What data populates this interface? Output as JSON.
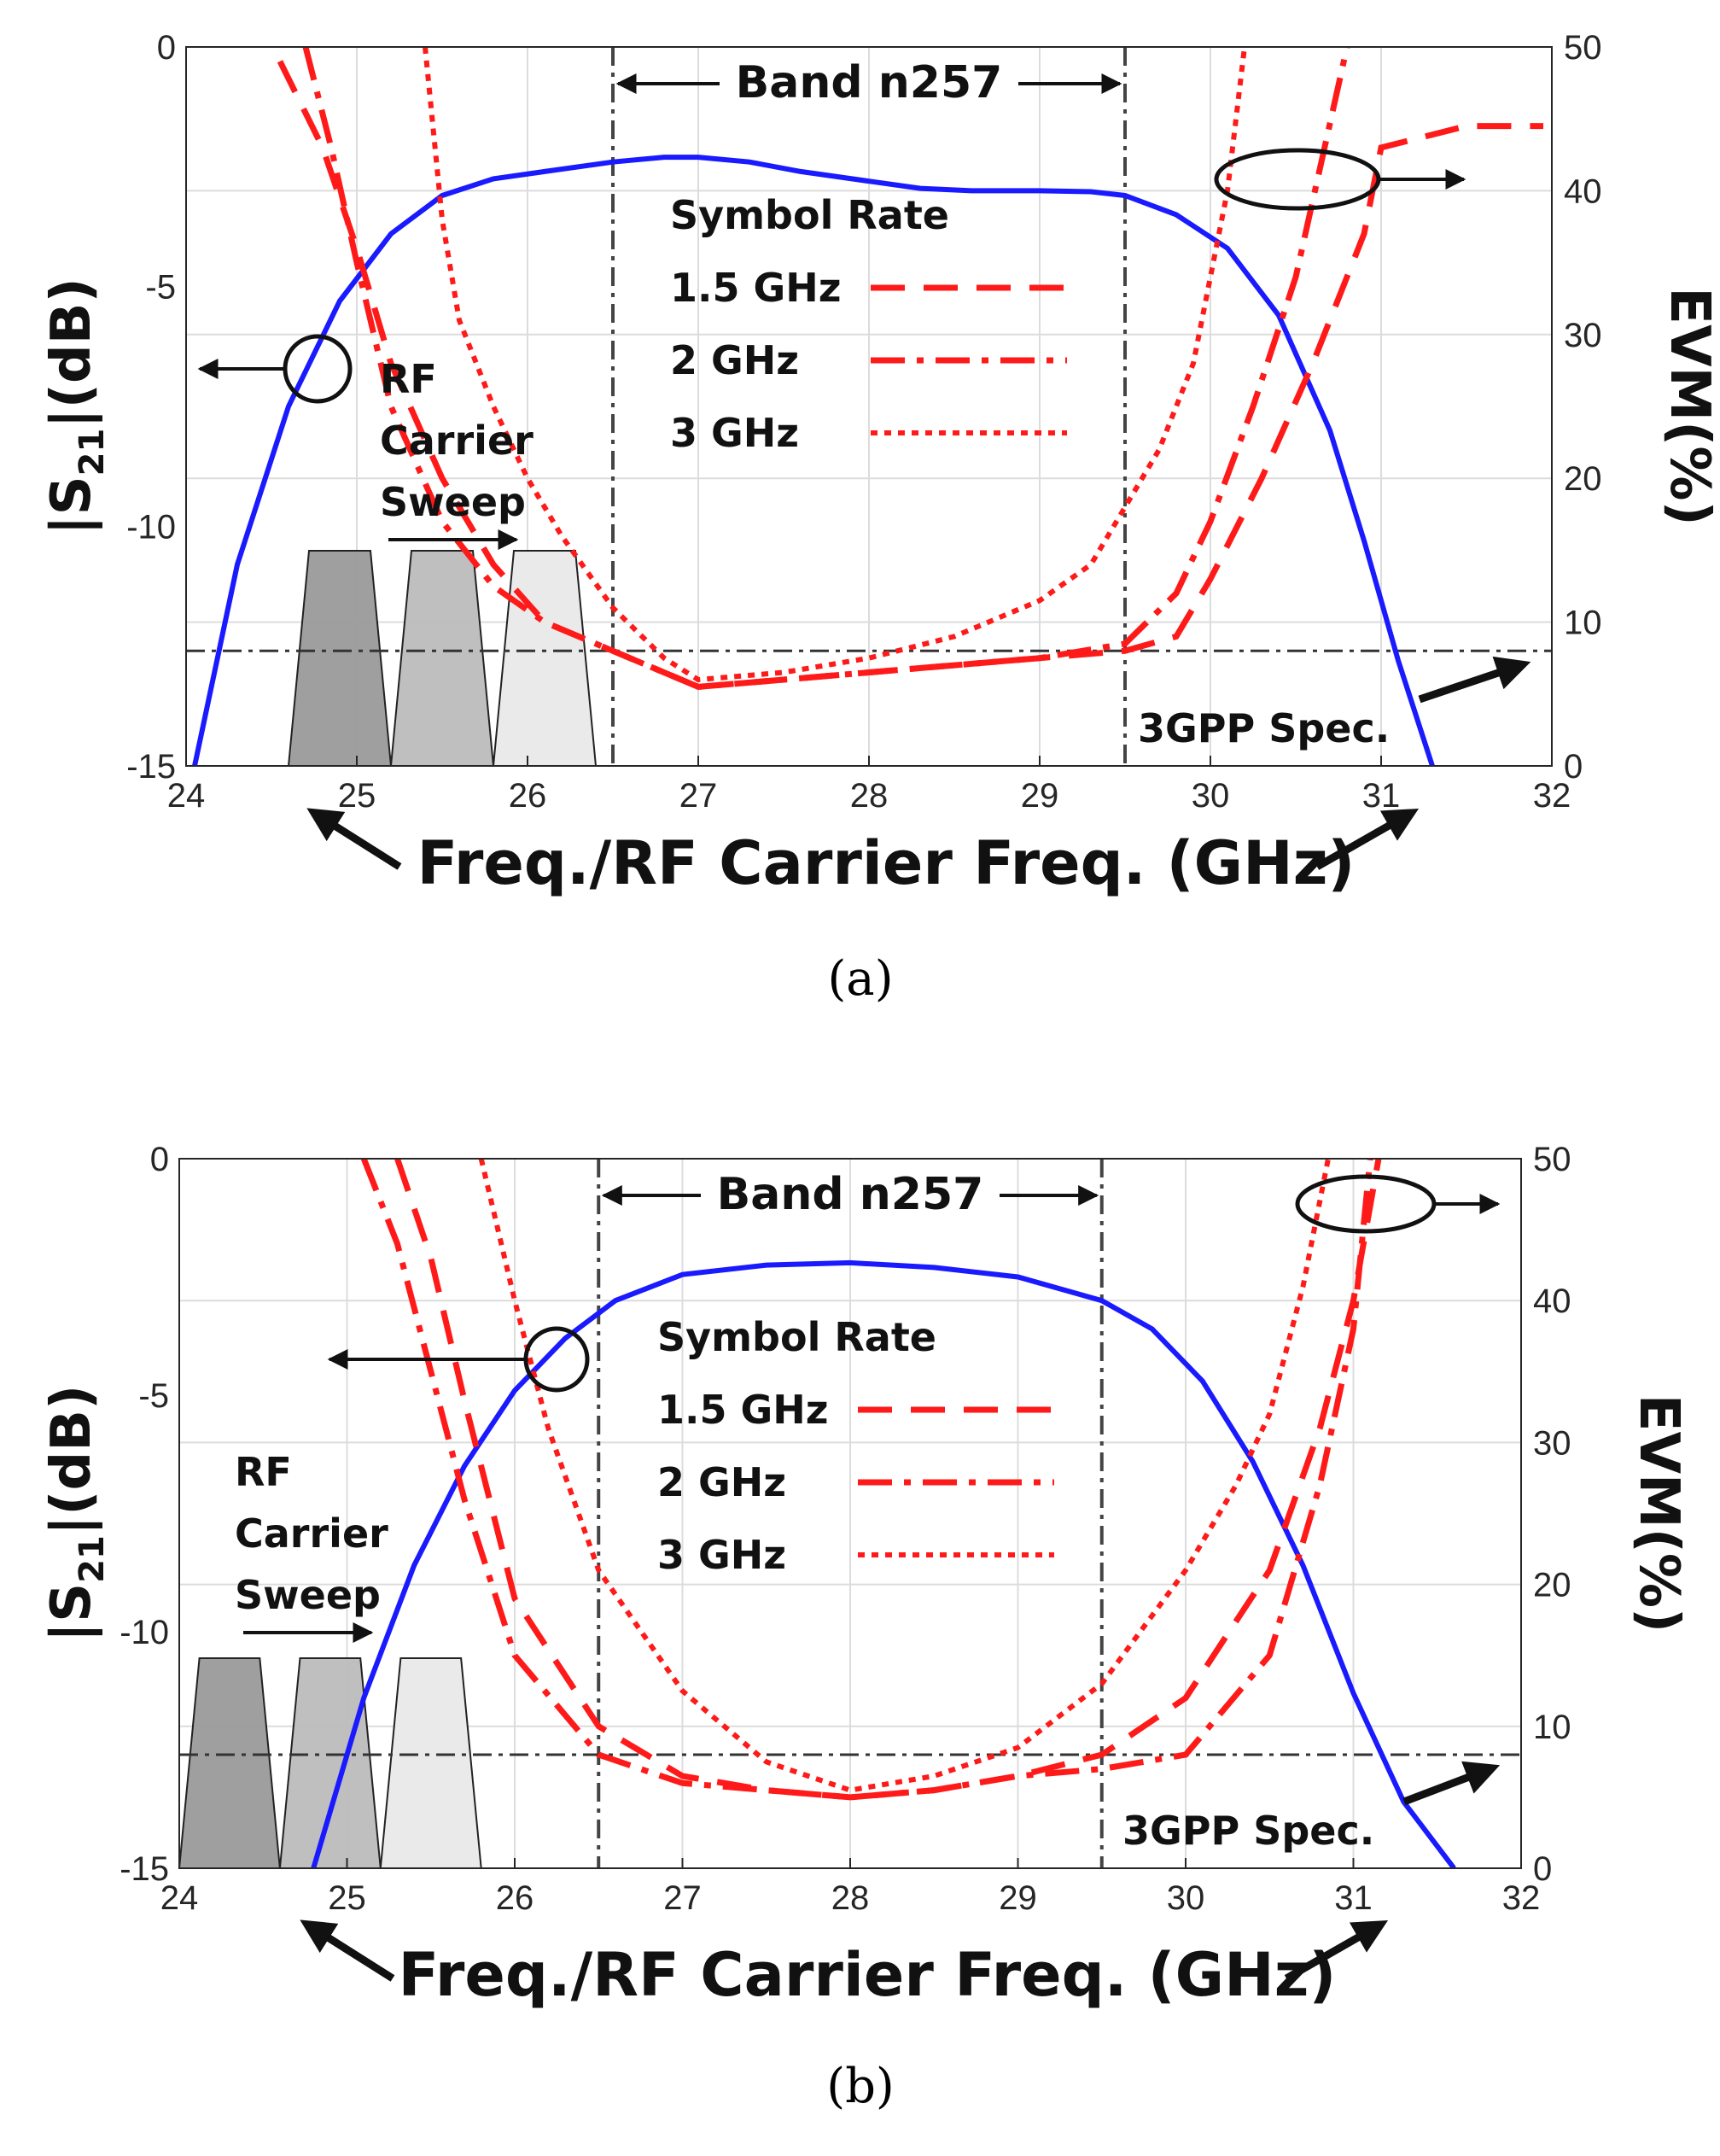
{
  "chart_data": [
    {
      "type": "line",
      "id": "a",
      "caption": "(a)",
      "xlabel": "Freq./RF Carrier Freq. (GHz)",
      "ylabel_left": "|S21|(dB)",
      "ylabel_left_main": "|S",
      "ylabel_left_sub": "21",
      "ylabel_left_tail": "|(dB)",
      "ylabel_right": "EVM(%)",
      "xlim": [
        24,
        32
      ],
      "ylim_left": [
        -15,
        0
      ],
      "ylim_right": [
        0,
        50
      ],
      "x_ticks": [
        "24",
        "25",
        "26",
        "27",
        "28",
        "29",
        "30",
        "31",
        "32"
      ],
      "y_left_ticks": [
        "-15",
        "-10",
        "-5",
        "0"
      ],
      "y_right_ticks": [
        "0",
        "10",
        "20",
        "30",
        "40",
        "50"
      ],
      "grid": true,
      "band_label": "Band n257",
      "band_range": [
        26.5,
        29.5
      ],
      "spec_label": "3GPP Spec.",
      "spec_evm": 8,
      "legend_title": "Symbol Rate",
      "carrier_label": [
        "RF",
        "Carrier",
        "Sweep"
      ],
      "series": [
        {
          "name": "|S21|",
          "axis": "left",
          "style": "solid",
          "color": "#1a1aff",
          "x": [
            24.05,
            24.3,
            24.6,
            24.9,
            25.2,
            25.5,
            25.8,
            26.1,
            26.5,
            26.8,
            27.0,
            27.3,
            27.6,
            28.0,
            28.3,
            28.6,
            29.0,
            29.3,
            29.5,
            29.8,
            30.1,
            30.4,
            30.7,
            30.9,
            31.1,
            31.3
          ],
          "y": [
            -15,
            -10.8,
            -7.5,
            -5.3,
            -3.9,
            -3.1,
            -2.75,
            -2.6,
            -2.4,
            -2.3,
            -2.3,
            -2.4,
            -2.6,
            -2.8,
            -2.95,
            -3.0,
            -3.0,
            -3.02,
            -3.1,
            -3.5,
            -4.2,
            -5.6,
            -8.0,
            -10.3,
            -12.8,
            -15
          ]
        },
        {
          "name": "1.5 GHz",
          "axis": "right",
          "style": "dashed",
          "color": "#ff1a1a",
          "x": [
            24.55,
            24.8,
            25.0,
            25.2,
            25.5,
            25.8,
            26.1,
            26.5,
            27.0,
            27.5,
            28.0,
            28.5,
            29.0,
            29.5,
            29.8,
            30.0,
            30.3,
            30.6,
            30.9,
            31.0,
            31.5,
            31.95
          ],
          "y": [
            49,
            43,
            36,
            28,
            20,
            14,
            10,
            8,
            5.5,
            6,
            6.5,
            7,
            7.5,
            8,
            9,
            13,
            20,
            28,
            37,
            43,
            44.5,
            44.5
          ]
        },
        {
          "name": "2 GHz",
          "axis": "right",
          "style": "dashdot",
          "color": "#ff1a1a",
          "x": [
            24.7,
            24.85,
            25.0,
            25.2,
            25.5,
            25.8,
            26.1,
            26.5,
            27.0,
            27.5,
            28.0,
            28.5,
            29.0,
            29.5,
            29.8,
            30.0,
            30.25,
            30.5,
            30.65,
            30.8
          ],
          "y": [
            50,
            43,
            35,
            25,
            17,
            12.5,
            10,
            8,
            5.5,
            6,
            6.5,
            7,
            7.5,
            8.5,
            12,
            17,
            25,
            34,
            42,
            50
          ]
        },
        {
          "name": "3 GHz",
          "axis": "right",
          "style": "dotted",
          "color": "#ff1a1a",
          "x": [
            25.4,
            25.5,
            25.6,
            25.8,
            26.0,
            26.2,
            26.5,
            26.8,
            27.0,
            27.5,
            28.0,
            28.5,
            29.0,
            29.3,
            29.5,
            29.7,
            29.9,
            30.0,
            30.1,
            30.2
          ],
          "y": [
            50,
            38,
            31,
            25,
            20,
            16,
            11,
            7.5,
            6,
            6.5,
            7.5,
            9,
            11.5,
            14,
            18,
            22,
            28,
            34,
            40,
            50
          ]
        }
      ]
    },
    {
      "type": "line",
      "id": "b",
      "caption": "(b)",
      "xlabel": "Freq./RF Carrier Freq. (GHz)",
      "ylabel_left": "|S21|(dB)",
      "ylabel_left_main": "|S",
      "ylabel_left_sub": "21",
      "ylabel_left_tail": "|(dB)",
      "ylabel_right": "EVM(%)",
      "xlim": [
        24,
        32
      ],
      "ylim_left": [
        -15,
        0
      ],
      "ylim_right": [
        0,
        50
      ],
      "x_ticks": [
        "24",
        "25",
        "26",
        "27",
        "28",
        "29",
        "30",
        "31",
        "32"
      ],
      "y_left_ticks": [
        "-15",
        "-10",
        "-5",
        "0"
      ],
      "y_right_ticks": [
        "0",
        "10",
        "20",
        "30",
        "40",
        "50"
      ],
      "grid": true,
      "band_label": "Band n257",
      "band_range": [
        26.5,
        29.5
      ],
      "spec_label": "3GPP Spec.",
      "spec_evm": 8,
      "legend_title": "Symbol Rate",
      "carrier_label": [
        "RF",
        "Carrier",
        "Sweep"
      ],
      "series": [
        {
          "name": "|S21|",
          "axis": "left",
          "style": "solid",
          "color": "#1a1aff",
          "x": [
            24.8,
            25.1,
            25.4,
            25.7,
            26.0,
            26.3,
            26.6,
            27.0,
            27.5,
            28.0,
            28.5,
            29.0,
            29.5,
            29.8,
            30.1,
            30.4,
            30.7,
            31.0,
            31.3,
            31.6
          ],
          "y": [
            -15,
            -11.4,
            -8.6,
            -6.5,
            -4.9,
            -3.8,
            -3.0,
            -2.45,
            -2.25,
            -2.2,
            -2.3,
            -2.5,
            -3.0,
            -3.6,
            -4.7,
            -6.4,
            -8.6,
            -11.3,
            -13.6,
            -15
          ]
        },
        {
          "name": "1.5 GHz",
          "axis": "right",
          "style": "dashed",
          "color": "#ff1a1a",
          "x": [
            25.3,
            25.5,
            25.7,
            26.0,
            26.5,
            27.0,
            27.5,
            28.0,
            28.5,
            29.0,
            29.5,
            30.0,
            30.5,
            30.8,
            31.0,
            31.15
          ],
          "y": [
            50,
            43,
            33,
            19,
            10,
            6.5,
            5.5,
            5,
            5.5,
            6.5,
            8,
            12,
            21,
            31,
            40,
            50
          ]
        },
        {
          "name": "2 GHz",
          "axis": "right",
          "style": "dashdot",
          "color": "#ff1a1a",
          "x": [
            25.1,
            25.3,
            25.5,
            25.7,
            26.0,
            26.5,
            27.0,
            27.5,
            28.0,
            28.5,
            29.0,
            29.5,
            30.0,
            30.5,
            30.8,
            31.0,
            31.1
          ],
          "y": [
            50,
            44,
            35,
            26,
            15,
            8,
            6,
            5.5,
            5,
            5.5,
            6.5,
            7,
            8,
            15,
            27,
            38,
            50
          ]
        },
        {
          "name": "3 GHz",
          "axis": "right",
          "style": "dotted",
          "color": "#ff1a1a",
          "x": [
            25.8,
            26.0,
            26.2,
            26.5,
            27.0,
            27.5,
            28.0,
            28.5,
            29.0,
            29.5,
            30.0,
            30.3,
            30.5,
            30.7,
            30.85
          ],
          "y": [
            50,
            40,
            31,
            21,
            12.5,
            7.5,
            5.5,
            6.5,
            8.5,
            13,
            21,
            27,
            32,
            41,
            50
          ]
        }
      ]
    }
  ]
}
